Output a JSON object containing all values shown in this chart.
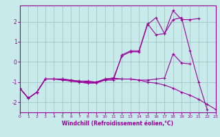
{
  "xlabel": "Windchill (Refroidissement éolien,°C)",
  "xlim": [
    0,
    23
  ],
  "ylim": [
    -2.5,
    2.8
  ],
  "yticks": [
    -2,
    -1,
    0,
    1,
    2
  ],
  "xticks": [
    0,
    1,
    2,
    3,
    4,
    5,
    6,
    7,
    8,
    9,
    10,
    11,
    12,
    13,
    14,
    15,
    16,
    17,
    18,
    19,
    20,
    21,
    22,
    23
  ],
  "bg_color": "#c8eaea",
  "line_color": "#990099",
  "grid_color": "#9bbfbf",
  "line1_x": [
    0,
    1,
    2,
    3,
    4,
    5,
    6,
    7,
    8,
    9,
    10,
    11,
    12,
    13,
    14,
    15,
    16,
    17,
    18,
    19,
    20,
    21,
    22
  ],
  "line1_y": [
    -1.3,
    -1.8,
    -1.5,
    -0.85,
    -0.85,
    -0.85,
    -0.95,
    -1.0,
    -1.05,
    -1.0,
    -0.9,
    -0.9,
    0.35,
    0.55,
    0.55,
    1.9,
    1.35,
    1.4,
    2.1,
    2.2,
    0.55,
    -1.0,
    -2.35
  ],
  "line2_x": [
    0,
    1,
    2,
    3,
    4,
    5,
    6,
    7,
    8,
    9,
    10,
    11,
    12,
    13,
    14,
    15,
    16,
    17,
    18,
    19,
    20,
    21,
    22,
    23
  ],
  "line2_y": [
    -1.3,
    -1.8,
    -1.5,
    -0.85,
    -0.85,
    -0.9,
    -0.95,
    -1.0,
    -1.05,
    -1.05,
    -0.9,
    -0.85,
    -0.85,
    -0.85,
    -0.9,
    -1.0,
    -1.05,
    -1.15,
    -1.3,
    -1.5,
    -1.65,
    -1.85,
    -2.1,
    -2.35
  ],
  "line3_x": [
    0,
    1,
    2,
    3,
    4,
    5,
    6,
    7,
    8,
    9,
    10,
    11,
    12,
    13,
    14,
    15,
    16,
    17,
    18,
    19,
    20,
    21
  ],
  "line3_y": [
    -1.3,
    -1.8,
    -1.5,
    -0.85,
    -0.85,
    -0.85,
    -0.9,
    -0.95,
    -1.0,
    -1.0,
    -0.85,
    -0.8,
    0.3,
    0.5,
    0.5,
    1.85,
    2.2,
    1.4,
    2.55,
    2.1,
    2.1,
    2.15
  ],
  "line4_x": [
    0,
    1,
    2,
    3,
    4,
    5,
    6,
    7,
    8,
    9,
    10,
    11,
    12,
    13,
    14,
    15,
    16,
    17,
    18,
    19,
    20
  ],
  "line4_y": [
    -1.3,
    -1.8,
    -1.5,
    -0.85,
    -0.85,
    -0.85,
    -0.9,
    -0.95,
    -0.95,
    -1.0,
    -0.85,
    -0.8,
    -0.85,
    -0.85,
    -0.9,
    -0.9,
    -0.85,
    -0.8,
    0.4,
    -0.05,
    -0.1
  ]
}
